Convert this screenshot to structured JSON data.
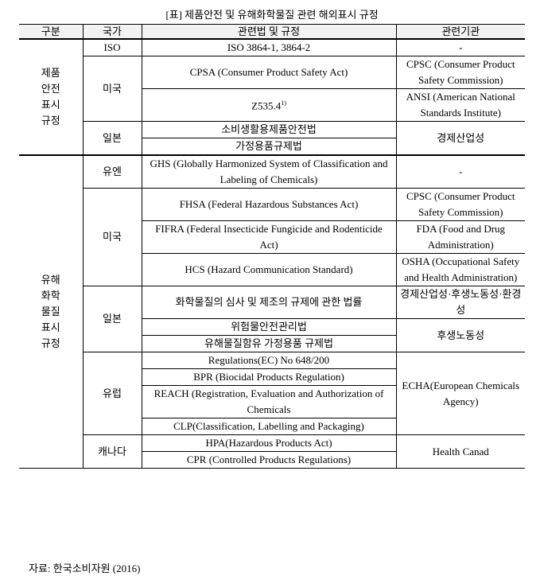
{
  "title": "[표] 제품안전 및 유해화학물질 관련 해외표시 규정",
  "header": [
    "구분",
    "국가",
    "관련법 및 규정",
    "관련기관"
  ],
  "groups": [
    {
      "label": [
        "제품",
        "안전",
        "표시",
        "규정"
      ],
      "countries": [
        {
          "name": "ISO",
          "entries": [
            {
              "laws": [
                "ISO 3864-1, 3864-2"
              ],
              "agency": "-"
            }
          ]
        },
        {
          "name": "미국",
          "entries": [
            {
              "laws": [
                "CPSA (Consumer Product Safety Act)"
              ],
              "agency": "CPSC (Consumer Product Safety Commission)"
            },
            {
              "laws": [
                "Z535.4"
              ],
              "note": "1)",
              "agency": "ANSI (American National Standards Institute)"
            }
          ]
        },
        {
          "name": "일본",
          "entries": [
            {
              "laws": [
                "소비생활용제품안전법",
                "가정용품규제법"
              ],
              "agency": "경제산업성"
            }
          ]
        }
      ]
    },
    {
      "label": [
        "유해",
        "화학",
        "물질",
        "표시",
        "규정"
      ],
      "countries": [
        {
          "name": "유엔",
          "entries": [
            {
              "laws": [
                "GHS (Globally Harmonized System of Classification and Labeling of Chemicals)"
              ],
              "agency": "-"
            }
          ]
        },
        {
          "name": "미국",
          "entries": [
            {
              "laws": [
                "FHSA (Federal Hazardous Substances Act)"
              ],
              "agency": "CPSC (Consumer Product Safety Commission)"
            },
            {
              "laws": [
                "FIFRA (Federal Insecticide Fungicide and Rodenticide Act)"
              ],
              "agency": "FDA (Food and Drug Administration)"
            },
            {
              "laws": [
                "HCS (Hazard Communication Standard)"
              ],
              "agency": "OSHA (Occupational Safety and Health Administration)"
            }
          ]
        },
        {
          "name": "일본",
          "entries": [
            {
              "laws": [
                "화학물질의 심사 및 제조의 규제에 관한 법률"
              ],
              "agency": "경제산업성·후생노동성·환경성"
            },
            {
              "laws": [
                "위험물안전관리법",
                "유해물질함유 가정용품 규제법"
              ],
              "agency": "후생노동성"
            }
          ]
        },
        {
          "name": "유럽",
          "entries": [
            {
              "laws": [
                "Regulations(EC) No 648/200",
                "BPR (Biocidal Products Regulation)",
                "REACH (Registration, Evaluation and Authorization of Chemicals",
                "CLP(Classification, Labelling and Packaging)"
              ],
              "agency": "ECHA(European Chemicals Agency)"
            }
          ]
        },
        {
          "name": "캐나다",
          "entries": [
            {
              "laws": [
                "HPA(Hazardous Products Act)",
                "CPR (Controlled Products Regulations)"
              ],
              "agency": "Health Canad"
            }
          ]
        }
      ]
    }
  ],
  "source": "자료: 한국소비자원 (2016)"
}
